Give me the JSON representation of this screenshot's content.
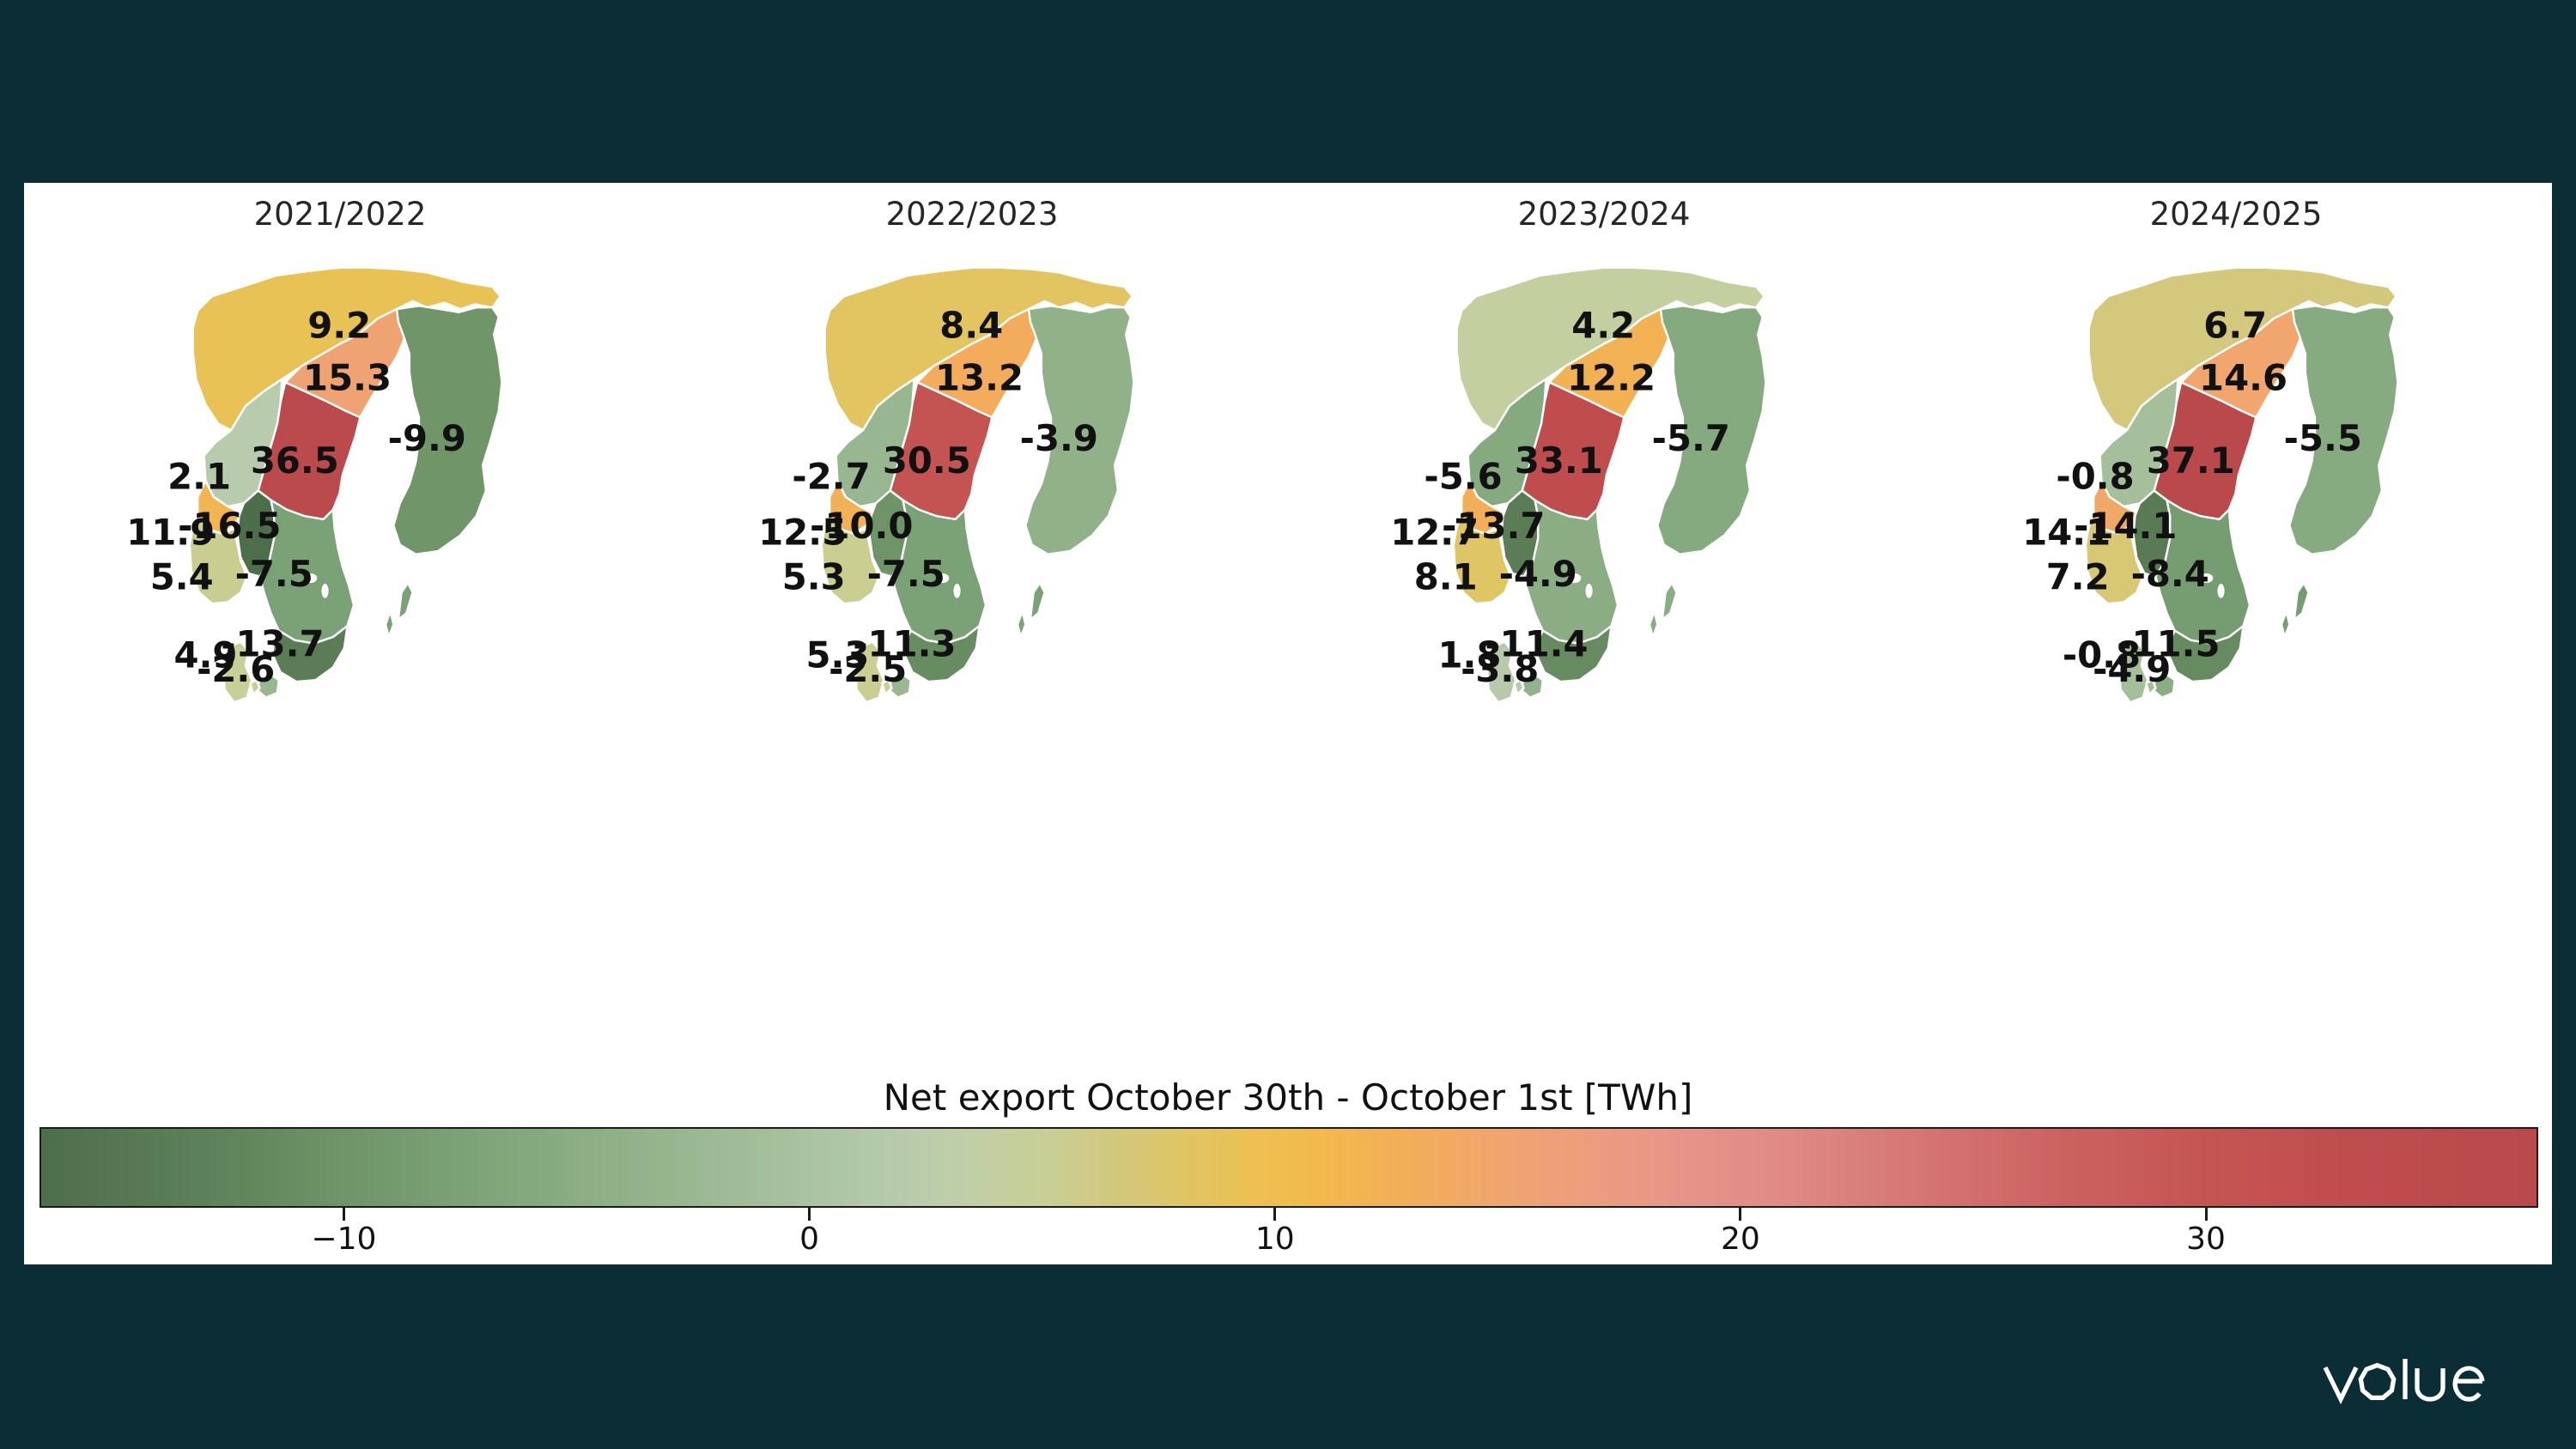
{
  "page": {
    "background": "#0b2d35",
    "panel": "#ffffff"
  },
  "maps": [
    {
      "title": "2021/2022",
      "values": {
        "NO4": "9.2",
        "SE1": "15.3",
        "SE2": "36.5",
        "FI": "-9.9",
        "NO3": "2.1",
        "NO5": "11.9",
        "NO1": "-16.5",
        "NO2": "5.4",
        "SE3": "-7.5",
        "SE4": "-13.7",
        "DK1": "4.9",
        "DK2": "-2.6"
      }
    },
    {
      "title": "2022/2023",
      "values": {
        "NO4": "8.4",
        "SE1": "13.2",
        "SE2": "30.5",
        "FI": "-3.9",
        "NO3": "-2.7",
        "NO5": "12.5",
        "NO1": "-10.0",
        "NO2": "5.3",
        "SE3": "-7.5",
        "SE4": "-11.3",
        "DK1": "5.3",
        "DK2": "-2.5"
      }
    },
    {
      "title": "2023/2024",
      "values": {
        "NO4": "4.2",
        "SE1": "12.2",
        "SE2": "33.1",
        "FI": "-5.7",
        "NO3": "-5.6",
        "NO5": "12.7",
        "NO1": "-13.7",
        "NO2": "8.1",
        "SE3": "-4.9",
        "SE4": "-11.4",
        "DK1": "1.8",
        "DK2": "-3.8"
      }
    },
    {
      "title": "2024/2025",
      "values": {
        "NO4": "6.7",
        "SE1": "14.6",
        "SE2": "37.1",
        "FI": "-5.5",
        "NO3": "-0.8",
        "NO5": "14.1",
        "NO1": "-14.1",
        "NO2": "7.2",
        "SE3": "-8.4",
        "SE4": "-11.5",
        "DK1": "-0.8",
        "DK2": "-4.9"
      }
    }
  ],
  "colorbar": {
    "title": "Net export October 30th - October 1st [TWh]",
    "vmin": -16.5,
    "vmax": 37.1,
    "tick_values": [
      -10,
      0,
      10,
      20,
      30
    ],
    "tick_labels": [
      "−10",
      "0",
      "10",
      "20",
      "30"
    ],
    "stops": [
      [
        -16.5,
        "#4d6e4b"
      ],
      [
        -13,
        "#5d8158"
      ],
      [
        -10,
        "#6e9468"
      ],
      [
        -7.5,
        "#7ba276"
      ],
      [
        -5,
        "#8aad83"
      ],
      [
        -2.5,
        "#99b891"
      ],
      [
        0,
        "#aac3a0"
      ],
      [
        2,
        "#b7cbac"
      ],
      [
        3.5,
        "#c1cfa6"
      ],
      [
        5,
        "#c8cf96"
      ],
      [
        6.5,
        "#d1c87f"
      ],
      [
        8,
        "#dfc565"
      ],
      [
        9.5,
        "#ecc151"
      ],
      [
        11,
        "#f3b94c"
      ],
      [
        13,
        "#f2ad5a"
      ],
      [
        15,
        "#f0a470"
      ],
      [
        17,
        "#ec9c80"
      ],
      [
        19,
        "#e6938a"
      ],
      [
        21,
        "#df8a82"
      ],
      [
        24,
        "#d47571"
      ],
      [
        27,
        "#cb6260"
      ],
      [
        30,
        "#c55553"
      ],
      [
        33,
        "#c04d4e"
      ],
      [
        37.1,
        "#b9494b"
      ]
    ]
  },
  "logo": {
    "text": "volue",
    "color": "#ffffff"
  },
  "chart_data": {
    "type": "heatmap",
    "subtype": "choropleth-map-small-multiples",
    "title": "Net export October 30th - October 1st [TWh]",
    "panel_titles": [
      "2021/2022",
      "2022/2023",
      "2023/2024",
      "2024/2025"
    ],
    "categories": [
      "NO4",
      "SE1",
      "SE2",
      "NO3",
      "NO5",
      "NO1",
      "NO2",
      "SE3",
      "SE4",
      "FI",
      "DK1",
      "DK2"
    ],
    "series": [
      {
        "name": "2021/2022",
        "values": [
          9.2,
          15.3,
          36.5,
          2.1,
          11.9,
          -16.5,
          5.4,
          -7.5,
          -13.7,
          -9.9,
          4.9,
          -2.6
        ]
      },
      {
        "name": "2022/2023",
        "values": [
          8.4,
          13.2,
          30.5,
          -2.7,
          12.5,
          -10.0,
          5.3,
          -7.5,
          -11.3,
          -3.9,
          5.3,
          -2.5
        ]
      },
      {
        "name": "2023/2024",
        "values": [
          4.2,
          12.2,
          33.1,
          -5.6,
          12.7,
          -13.7,
          8.1,
          -4.9,
          -11.4,
          -5.7,
          1.8,
          -3.8
        ]
      },
      {
        "name": "2024/2025",
        "values": [
          6.7,
          14.6,
          37.1,
          -0.8,
          14.1,
          -14.1,
          7.2,
          -8.4,
          -11.5,
          -5.5,
          -0.8,
          -4.9
        ]
      }
    ],
    "colorbar_range": [
      -16.5,
      37.1
    ],
    "colorbar_ticks": [
      -10,
      0,
      10,
      20,
      30
    ],
    "legend_position": "bottom",
    "grid": false
  }
}
